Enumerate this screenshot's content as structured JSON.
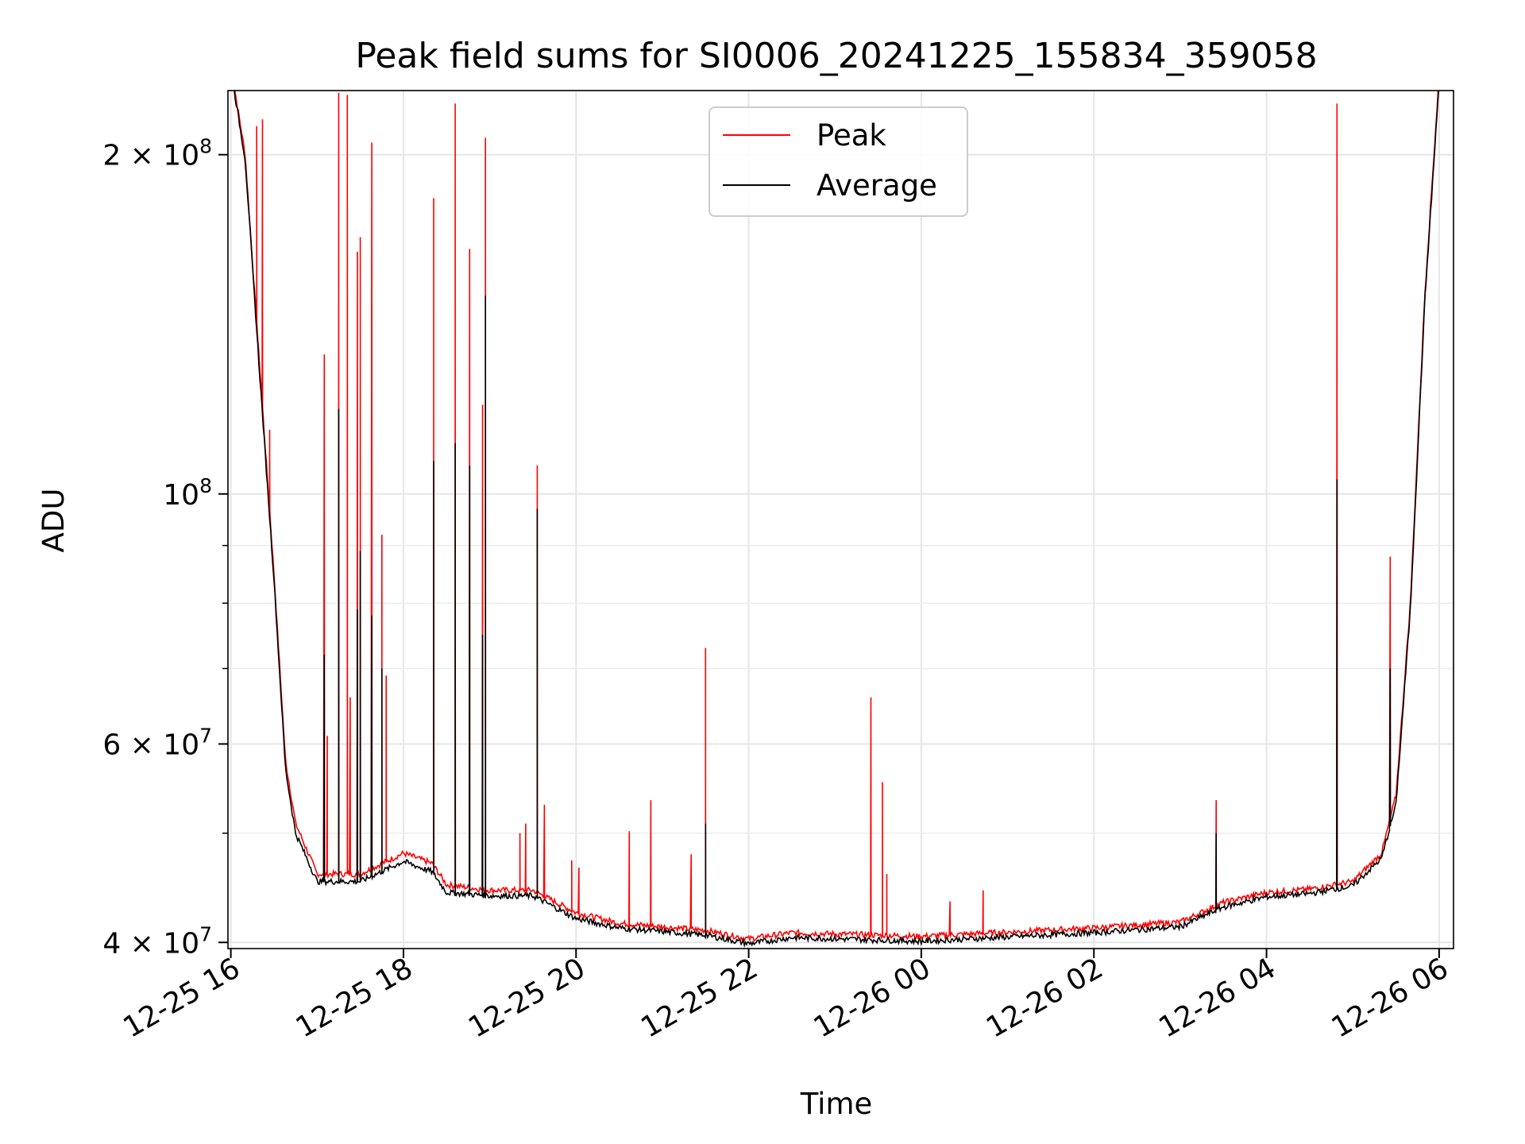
{
  "chart_data": {
    "type": "line",
    "title": "Peak field sums for SI0006_20241225_155834_359058",
    "xlabel": "Time",
    "ylabel": "ADU",
    "yscale": "log",
    "ylim": [
      39500000,
      228000000
    ],
    "xlim": [
      "2024-12-25T15:58:00",
      "2024-12-26T06:10:00"
    ],
    "grid": true,
    "legend": {
      "placement": "upper center"
    },
    "x_ticks": [
      {
        "t": "2024-12-25T16:00",
        "label": "12-25 16"
      },
      {
        "t": "2024-12-25T18:00",
        "label": "12-25 18"
      },
      {
        "t": "2024-12-25T20:00",
        "label": "12-25 20"
      },
      {
        "t": "2024-12-25T22:00",
        "label": "12-25 22"
      },
      {
        "t": "2024-12-26T00:00",
        "label": "12-26 00"
      },
      {
        "t": "2024-12-26T02:00",
        "label": "12-26 02"
      },
      {
        "t": "2024-12-26T04:00",
        "label": "12-26 04"
      },
      {
        "t": "2024-12-26T06:00",
        "label": "12-26 06"
      }
    ],
    "y_ticks": [
      {
        "value": 40000000,
        "mantissa": "4",
        "exp": "7"
      },
      {
        "value": 60000000,
        "mantissa": "6",
        "exp": "7"
      },
      {
        "value": 100000000,
        "mantissa": "",
        "exp": "8"
      },
      {
        "value": 200000000,
        "mantissa": "2",
        "exp": "8"
      }
    ],
    "y_minor_ticks": [
      50000000,
      70000000,
      80000000,
      90000000,
      300000000
    ],
    "series": [
      {
        "name": "Peak",
        "color": "#ff0000",
        "baseline": [
          [
            "2024-12-25T16:00",
            240000000
          ],
          [
            "2024-12-25T16:10",
            200000000
          ],
          [
            "2024-12-25T16:20",
            130000000
          ],
          [
            "2024-12-25T16:30",
            85000000
          ],
          [
            "2024-12-25T16:38",
            58000000
          ],
          [
            "2024-12-25T16:45",
            51000000
          ],
          [
            "2024-12-25T17:00",
            46000000
          ],
          [
            "2024-12-25T17:30",
            46000000
          ],
          [
            "2024-12-25T18:00",
            48000000
          ],
          [
            "2024-12-25T18:20",
            47000000
          ],
          [
            "2024-12-25T18:30",
            45000000
          ],
          [
            "2024-12-25T19:00",
            44500000
          ],
          [
            "2024-12-25T19:30",
            44500000
          ],
          [
            "2024-12-25T20:00",
            42500000
          ],
          [
            "2024-12-25T20:30",
            41600000
          ],
          [
            "2024-12-25T21:30",
            41000000
          ],
          [
            "2024-12-25T22:00",
            40300000
          ],
          [
            "2024-12-25T22:30",
            40800000
          ],
          [
            "2024-12-26T00:00",
            40500000
          ],
          [
            "2024-12-26T02:00",
            41200000
          ],
          [
            "2024-12-26T03:00",
            41700000
          ],
          [
            "2024-12-26T03:30",
            43400000
          ],
          [
            "2024-12-26T04:00",
            44300000
          ],
          [
            "2024-12-26T04:30",
            44600000
          ],
          [
            "2024-12-26T05:00",
            45300000
          ],
          [
            "2024-12-26T05:20",
            48000000
          ],
          [
            "2024-12-26T05:30",
            54000000
          ],
          [
            "2024-12-26T05:40",
            80000000
          ],
          [
            "2024-12-26T05:50",
            150000000
          ],
          [
            "2024-12-26T06:00",
            235000000
          ]
        ],
        "spikes": [
          [
            "2024-12-25T16:18",
            212000000
          ],
          [
            "2024-12-25T16:22",
            215000000
          ],
          [
            "2024-12-25T16:27",
            114000000
          ],
          [
            "2024-12-25T17:05",
            133000000
          ],
          [
            "2024-12-25T17:07",
            61000000
          ],
          [
            "2024-12-25T17:15",
            227000000
          ],
          [
            "2024-12-25T17:21",
            226000000
          ],
          [
            "2024-12-25T17:23",
            66000000
          ],
          [
            "2024-12-25T17:28",
            164000000
          ],
          [
            "2024-12-25T17:30",
            169000000
          ],
          [
            "2024-12-25T17:38",
            205000000
          ],
          [
            "2024-12-25T17:45",
            92000000
          ],
          [
            "2024-12-25T17:48",
            69000000
          ],
          [
            "2024-12-25T18:21",
            183000000
          ],
          [
            "2024-12-25T18:36",
            222000000
          ],
          [
            "2024-12-25T18:46",
            165000000
          ],
          [
            "2024-12-25T18:55",
            120000000
          ],
          [
            "2024-12-25T18:57",
            207000000
          ],
          [
            "2024-12-25T19:21",
            50000000
          ],
          [
            "2024-12-25T19:25",
            51000000
          ],
          [
            "2024-12-25T19:33",
            106000000
          ],
          [
            "2024-12-25T19:38",
            53000000
          ],
          [
            "2024-12-25T19:57",
            47300000
          ],
          [
            "2024-12-25T20:02",
            46600000
          ],
          [
            "2024-12-25T20:37",
            50200000
          ],
          [
            "2024-12-25T20:52",
            53500000
          ],
          [
            "2024-12-25T21:20",
            47900000
          ],
          [
            "2024-12-25T21:30",
            73000000
          ],
          [
            "2024-12-25T23:25",
            66000000
          ],
          [
            "2024-12-25T23:33",
            55500000
          ],
          [
            "2024-12-25T23:36",
            46000000
          ],
          [
            "2024-12-26T00:20",
            43500000
          ],
          [
            "2024-12-26T00:43",
            44500000
          ],
          [
            "2024-12-26T03:25",
            53500000
          ],
          [
            "2024-12-26T04:49",
            222000000
          ],
          [
            "2024-12-26T05:26",
            88000000
          ]
        ]
      },
      {
        "name": "Average",
        "color": "#000000",
        "baseline": [
          [
            "2024-12-25T16:00",
            238000000
          ],
          [
            "2024-12-25T16:10",
            198000000
          ],
          [
            "2024-12-25T16:20",
            128000000
          ],
          [
            "2024-12-25T16:30",
            84000000
          ],
          [
            "2024-12-25T16:38",
            57000000
          ],
          [
            "2024-12-25T16:45",
            50000000
          ],
          [
            "2024-12-25T17:00",
            45300000
          ],
          [
            "2024-12-25T17:30",
            45300000
          ],
          [
            "2024-12-25T18:00",
            47200000
          ],
          [
            "2024-12-25T18:20",
            46200000
          ],
          [
            "2024-12-25T18:30",
            44300000
          ],
          [
            "2024-12-25T19:00",
            44000000
          ],
          [
            "2024-12-25T19:30",
            44000000
          ],
          [
            "2024-12-25T20:00",
            42000000
          ],
          [
            "2024-12-25T20:30",
            41200000
          ],
          [
            "2024-12-25T21:30",
            40600000
          ],
          [
            "2024-12-25T22:00",
            39900000
          ],
          [
            "2024-12-25T22:30",
            40400000
          ],
          [
            "2024-12-26T00:00",
            40100000
          ],
          [
            "2024-12-26T02:00",
            40800000
          ],
          [
            "2024-12-26T03:00",
            41300000
          ],
          [
            "2024-12-26T03:30",
            43000000
          ],
          [
            "2024-12-26T04:00",
            43900000
          ],
          [
            "2024-12-26T04:30",
            44200000
          ],
          [
            "2024-12-26T05:00",
            44900000
          ],
          [
            "2024-12-26T05:20",
            47500000
          ],
          [
            "2024-12-26T05:30",
            53000000
          ],
          [
            "2024-12-26T05:40",
            79000000
          ],
          [
            "2024-12-26T05:50",
            148000000
          ],
          [
            "2024-12-26T06:00",
            232000000
          ]
        ],
        "spikes": [
          [
            "2024-12-25T17:05",
            72000000
          ],
          [
            "2024-12-25T17:15",
            119000000
          ],
          [
            "2024-12-25T17:28",
            79000000
          ],
          [
            "2024-12-25T17:30",
            89000000
          ],
          [
            "2024-12-25T17:38",
            78000000
          ],
          [
            "2024-12-25T17:45",
            70000000
          ],
          [
            "2024-12-25T18:21",
            107000000
          ],
          [
            "2024-12-25T18:36",
            111000000
          ],
          [
            "2024-12-25T18:46",
            106000000
          ],
          [
            "2024-12-25T18:55",
            75000000
          ],
          [
            "2024-12-25T18:57",
            150000000
          ],
          [
            "2024-12-25T19:33",
            97000000
          ],
          [
            "2024-12-25T21:30",
            51000000
          ],
          [
            "2024-12-26T03:25",
            50000000
          ],
          [
            "2024-12-26T04:49",
            103000000
          ],
          [
            "2024-12-26T05:26",
            70000000
          ]
        ]
      }
    ]
  }
}
